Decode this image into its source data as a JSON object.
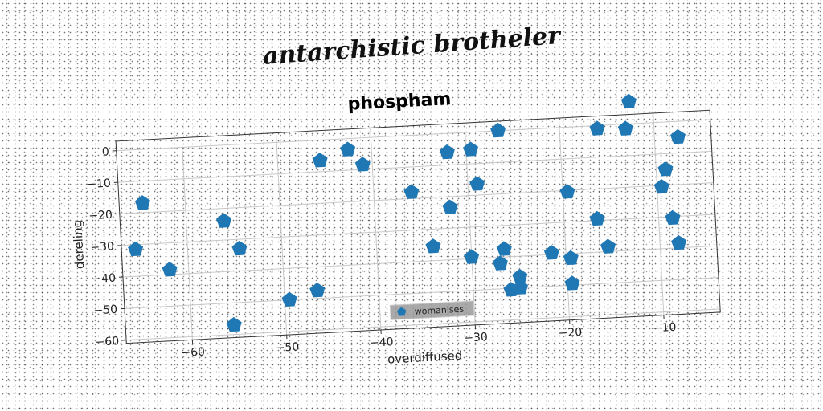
{
  "suptitle": "antarchistic brotheler",
  "chart_data": {
    "type": "scatter",
    "title": "phospham",
    "xlabel": "overdiffused",
    "ylabel": "dereling",
    "xlim": [
      -67,
      -4
    ],
    "ylim": [
      -61,
      3
    ],
    "xticks": [
      -60,
      -50,
      -40,
      -30,
      -20,
      -10
    ],
    "yticks": [
      0,
      -10,
      -20,
      -30,
      -40,
      -50,
      -60
    ],
    "grid": true,
    "legend_position": "bottom-center",
    "marker": "pentagon",
    "color": "#1f77b4",
    "series": [
      {
        "name": "womanises",
        "points": [
          [
            -65.5,
            -31.5
          ],
          [
            -64.5,
            -17.0
          ],
          [
            -62.0,
            -38.5
          ],
          [
            -56.0,
            -24.0
          ],
          [
            -54.5,
            -33.0
          ],
          [
            -55.5,
            -57.0
          ],
          [
            -49.5,
            -50.0
          ],
          [
            -46.5,
            -47.5
          ],
          [
            -45.5,
            -6.5
          ],
          [
            -42.5,
            -3.5
          ],
          [
            -41.0,
            -8.5
          ],
          [
            -36.0,
            -18.0
          ],
          [
            -34.0,
            -35.5
          ],
          [
            -32.0,
            -6.0
          ],
          [
            -32.0,
            -23.5
          ],
          [
            -30.0,
            -39.5
          ],
          [
            -29.5,
            -5.5
          ],
          [
            -29.0,
            -16.5
          ],
          [
            -27.0,
            -42.0
          ],
          [
            -26.5,
            -37.5
          ],
          [
            -26.5,
            0.0
          ],
          [
            -26.0,
            -50.5
          ],
          [
            -25.0,
            -50.0
          ],
          [
            -25.0,
            -46.5
          ],
          [
            -21.5,
            -39.5
          ],
          [
            -19.5,
            -41.5
          ],
          [
            -19.5,
            -49.5
          ],
          [
            -19.5,
            -20.5
          ],
          [
            -16.5,
            -29.5
          ],
          [
            -16.0,
            -1.0
          ],
          [
            -15.5,
            -38.5
          ],
          [
            -13.0,
            -1.5
          ],
          [
            -12.5,
            7.0
          ],
          [
            -9.5,
            -20.5
          ],
          [
            -9.0,
            -15.0
          ],
          [
            -8.5,
            -30.5
          ],
          [
            -8.0,
            -38.5
          ],
          [
            -7.5,
            -5.0
          ]
        ]
      }
    ]
  }
}
